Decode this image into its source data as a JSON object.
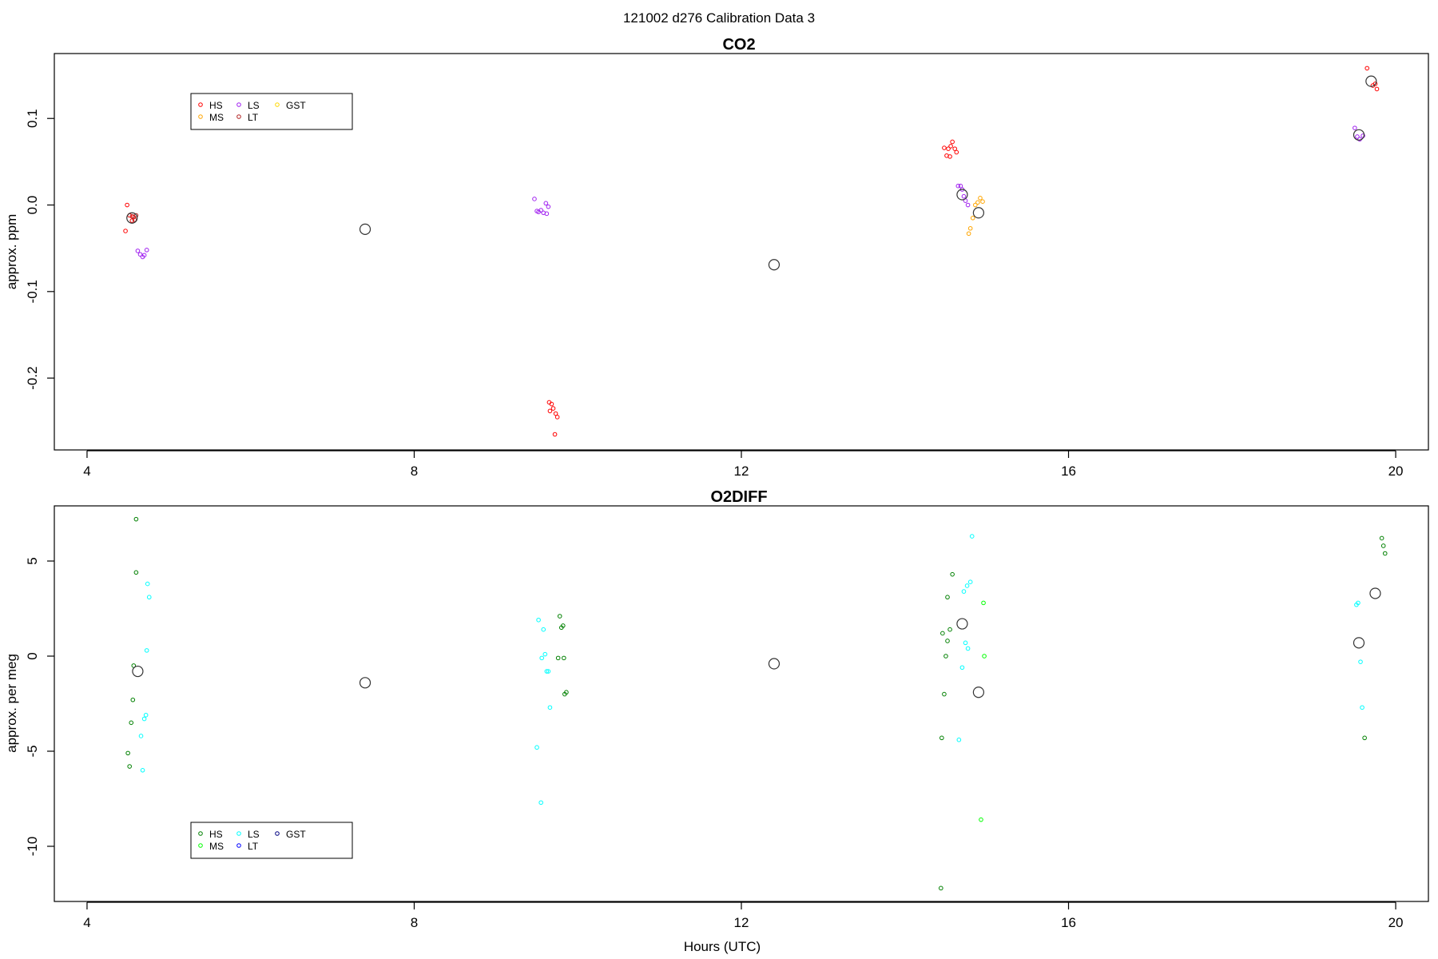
{
  "figure": {
    "title": "121002   d276   Calibration Data 3",
    "xlabel": "Hours (UTC)"
  },
  "chart_data": [
    {
      "type": "scatter",
      "title": "CO2",
      "xlabel": "",
      "ylabel": "approx. ppm",
      "xlim": [
        3.6,
        20.4
      ],
      "ylim": [
        -0.283,
        0.175
      ],
      "xticks": [
        4,
        8,
        12,
        16,
        20
      ],
      "yticks": [
        -0.2,
        -0.1,
        0.0,
        0.1
      ],
      "ytick_labels": [
        "-0.2",
        "-0.1",
        "0.0",
        "0.1"
      ],
      "grid": false,
      "legend_position": "top-left",
      "legend": [
        {
          "name": "HS",
          "color": "#ff0000"
        },
        {
          "name": "MS",
          "color": "#ffa500"
        },
        {
          "name": "LS",
          "color": "#a020f0"
        },
        {
          "name": "LT",
          "color": "#b22222"
        },
        {
          "name": "GST",
          "color": "#ffd700"
        }
      ],
      "series": [
        {
          "name": "HS",
          "color": "#ff0000",
          "points": [
            [
              4.49,
              0.0
            ],
            [
              4.47,
              -0.03
            ],
            [
              4.52,
              -0.012
            ],
            [
              4.55,
              -0.018
            ],
            [
              4.57,
              -0.014
            ],
            [
              9.65,
              -0.228
            ],
            [
              9.68,
              -0.23
            ],
            [
              9.7,
              -0.235
            ],
            [
              9.66,
              -0.238
            ],
            [
              9.73,
              -0.241
            ],
            [
              9.75,
              -0.245
            ],
            [
              9.72,
              -0.265
            ],
            [
              14.48,
              0.066
            ],
            [
              14.51,
              0.057
            ],
            [
              14.53,
              0.065
            ],
            [
              14.56,
              0.068
            ],
            [
              14.58,
              0.073
            ],
            [
              14.61,
              0.065
            ],
            [
              14.63,
              0.061
            ],
            [
              14.55,
              0.056
            ],
            [
              19.65,
              0.158
            ],
            [
              19.72,
              0.138
            ],
            [
              19.75,
              0.14
            ],
            [
              19.77,
              0.134
            ]
          ]
        },
        {
          "name": "MS",
          "color": "#ffa500",
          "points": [
            [
              14.8,
              -0.027
            ],
            [
              14.83,
              -0.015
            ],
            [
              14.86,
              0.0
            ],
            [
              14.89,
              0.003
            ],
            [
              14.92,
              0.008
            ],
            [
              14.95,
              0.004
            ],
            [
              14.78,
              -0.033
            ]
          ]
        },
        {
          "name": "LS",
          "color": "#a020f0",
          "points": [
            [
              4.62,
              -0.053
            ],
            [
              4.65,
              -0.057
            ],
            [
              4.68,
              -0.06
            ],
            [
              4.7,
              -0.058
            ],
            [
              4.73,
              -0.052
            ],
            [
              9.47,
              0.007
            ],
            [
              9.5,
              -0.007
            ],
            [
              9.52,
              -0.008
            ],
            [
              9.55,
              -0.006
            ],
            [
              9.58,
              -0.009
            ],
            [
              9.61,
              0.002
            ],
            [
              9.64,
              -0.002
            ],
            [
              9.62,
              -0.01
            ],
            [
              14.65,
              0.022
            ],
            [
              14.68,
              0.022
            ],
            [
              14.7,
              0.018
            ],
            [
              14.74,
              0.005
            ],
            [
              14.77,
              0.0
            ],
            [
              14.72,
              0.01
            ],
            [
              19.5,
              0.089
            ],
            [
              19.53,
              0.079
            ],
            [
              19.56,
              0.076
            ],
            [
              19.6,
              0.08
            ]
          ]
        },
        {
          "name": "LT",
          "color": "#b22222",
          "points": [
            [
              4.55,
              -0.013
            ],
            [
              4.58,
              -0.017
            ],
            [
              4.6,
              -0.012
            ]
          ]
        },
        {
          "name": "GST",
          "color": "#ffd700",
          "points": []
        }
      ],
      "means": [
        [
          4.55,
          -0.015
        ],
        [
          7.4,
          -0.028
        ],
        [
          12.4,
          -0.069
        ],
        [
          14.7,
          0.012
        ],
        [
          14.9,
          -0.009
        ],
        [
          19.55,
          0.081
        ],
        [
          19.7,
          0.143
        ]
      ]
    },
    {
      "type": "scatter",
      "title": "O2DIFF",
      "xlabel": "Hours (UTC)",
      "ylabel": "approx. per meg",
      "xlim": [
        3.6,
        20.4
      ],
      "ylim": [
        -12.9,
        7.9
      ],
      "xticks": [
        4,
        8,
        12,
        16,
        20
      ],
      "yticks": [
        -10,
        -5,
        0,
        5
      ],
      "ytick_labels": [
        "-10",
        "-5",
        "0",
        "5"
      ],
      "grid": false,
      "legend_position": "bottom-left",
      "legend": [
        {
          "name": "HS",
          "color": "#008000"
        },
        {
          "name": "MS",
          "color": "#00ff00"
        },
        {
          "name": "LS",
          "color": "#00ffff"
        },
        {
          "name": "LT",
          "color": "#0000ff"
        },
        {
          "name": "GST",
          "color": "#000080"
        }
      ],
      "series": [
        {
          "name": "HS",
          "color": "#008000",
          "points": [
            [
              4.6,
              7.2
            ],
            [
              4.6,
              4.4
            ],
            [
              4.57,
              -0.5
            ],
            [
              4.56,
              -2.3
            ],
            [
              4.54,
              -3.5
            ],
            [
              4.5,
              -5.1
            ],
            [
              4.52,
              -5.8
            ],
            [
              9.78,
              2.1
            ],
            [
              9.8,
              1.5
            ],
            [
              9.82,
              1.6
            ],
            [
              9.76,
              -0.1
            ],
            [
              9.83,
              -0.1
            ],
            [
              9.86,
              -1.9
            ],
            [
              9.84,
              -2.0
            ],
            [
              14.58,
              4.3
            ],
            [
              14.52,
              3.1
            ],
            [
              14.46,
              1.2
            ],
            [
              14.55,
              1.4
            ],
            [
              14.52,
              0.8
            ],
            [
              14.5,
              0.0
            ],
            [
              14.48,
              -2.0
            ],
            [
              14.45,
              -4.3
            ],
            [
              14.44,
              -12.2
            ],
            [
              19.83,
              6.2
            ],
            [
              19.85,
              5.8
            ],
            [
              19.87,
              5.4
            ],
            [
              19.62,
              -4.3
            ]
          ]
        },
        {
          "name": "MS",
          "color": "#00ff00",
          "points": [
            [
              14.96,
              2.8
            ],
            [
              14.97,
              0.0
            ],
            [
              14.93,
              -8.6
            ]
          ]
        },
        {
          "name": "LS",
          "color": "#00ffff",
          "points": [
            [
              4.74,
              3.8
            ],
            [
              4.76,
              3.1
            ],
            [
              4.73,
              0.3
            ],
            [
              4.72,
              -3.1
            ],
            [
              4.7,
              -3.3
            ],
            [
              4.66,
              -4.2
            ],
            [
              4.68,
              -6.0
            ],
            [
              9.52,
              1.9
            ],
            [
              9.58,
              1.4
            ],
            [
              9.56,
              -0.1
            ],
            [
              9.6,
              0.1
            ],
            [
              9.62,
              -0.8
            ],
            [
              9.64,
              -0.8
            ],
            [
              9.66,
              -2.7
            ],
            [
              9.5,
              -4.8
            ],
            [
              9.55,
              -7.7
            ],
            [
              14.82,
              6.3
            ],
            [
              14.8,
              3.9
            ],
            [
              14.76,
              3.7
            ],
            [
              14.72,
              3.4
            ],
            [
              14.74,
              0.7
            ],
            [
              14.77,
              0.4
            ],
            [
              14.7,
              -0.6
            ],
            [
              14.66,
              -4.4
            ],
            [
              19.54,
              2.8
            ],
            [
              19.52,
              2.7
            ],
            [
              19.57,
              -0.3
            ],
            [
              19.59,
              -2.7
            ]
          ]
        },
        {
          "name": "LT",
          "color": "#0000ff",
          "points": []
        },
        {
          "name": "GST",
          "color": "#000080",
          "points": []
        }
      ],
      "means": [
        [
          4.62,
          -0.8
        ],
        [
          7.4,
          -1.4
        ],
        [
          12.4,
          -0.4
        ],
        [
          14.7,
          1.7
        ],
        [
          14.9,
          -1.9
        ],
        [
          19.55,
          0.7
        ],
        [
          19.75,
          3.3
        ]
      ]
    }
  ]
}
